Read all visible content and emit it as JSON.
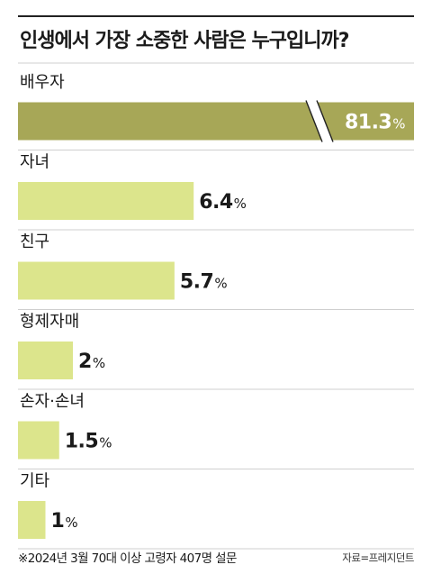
{
  "chart_data": {
    "type": "bar",
    "orientation": "horizontal",
    "title": "인생에서 가장 소중한 사람은 누구입니까?",
    "categories": [
      "배우자",
      "자녀",
      "친구",
      "형제자매",
      "손자·손녀",
      "기타"
    ],
    "values": [
      81.3,
      6.4,
      5.7,
      2,
      1.5,
      1
    ],
    "value_labels": [
      "81.3",
      "6.4",
      "5.7",
      "2",
      "1.5",
      "1"
    ],
    "unit": "%",
    "axis_break": true,
    "highlight_index": 0,
    "colors": {
      "highlight_bar": "#a7a757",
      "bar": "#dce58c",
      "rule": "#222222",
      "separator": "#cfcfcf",
      "break": "#ffffff"
    }
  },
  "footnote": "※2024년 3월 70대 이상 고령자 407명 설문",
  "source": "자료=프레지던트"
}
